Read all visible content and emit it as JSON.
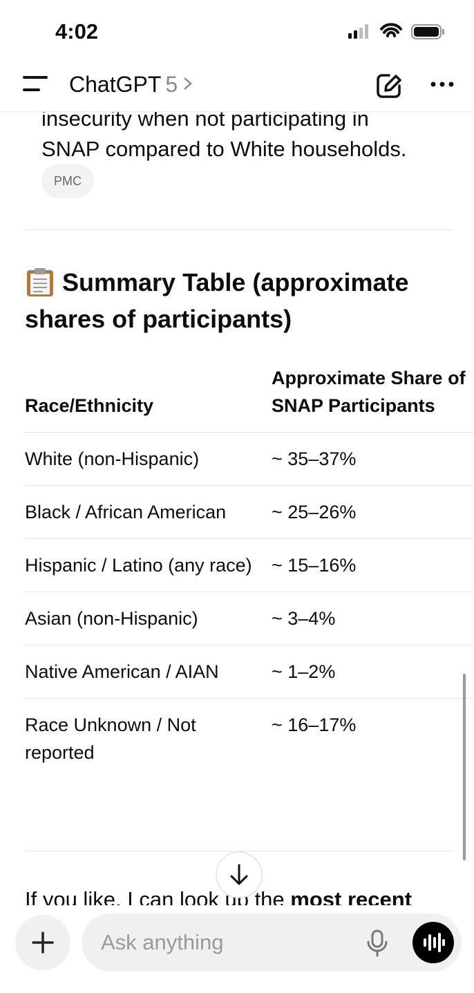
{
  "status": {
    "time": "4:02"
  },
  "header": {
    "title": "ChatGPT",
    "model": "5"
  },
  "content": {
    "paragraph_lines": [
      "insecurity when not participating in",
      "SNAP compared to White households."
    ],
    "citation": "PMC",
    "heading_lines": [
      "Summary Table (approximate",
      "shares of participants)"
    ],
    "table": {
      "columns": [
        "Race/Ethnicity",
        "Approximate Share of SNAP Participants"
      ],
      "rows": [
        [
          "White (non-Hispanic)",
          "~ 35–37%"
        ],
        [
          "Black / African American",
          "~ 25–26%"
        ],
        [
          "Hispanic / Latino (any race)",
          "~ 15–16%"
        ],
        [
          "Asian (non-Hispanic)",
          "~ 3–4%"
        ],
        [
          "Native American / AIAN",
          "~ 1–2%"
        ],
        [
          "Race Unknown / Not reported",
          "~ 16–17%"
        ]
      ]
    },
    "footer": {
      "text": "If you like, I can look up the",
      "bold": "most recent"
    }
  },
  "composer": {
    "placeholder": "Ask anything"
  }
}
